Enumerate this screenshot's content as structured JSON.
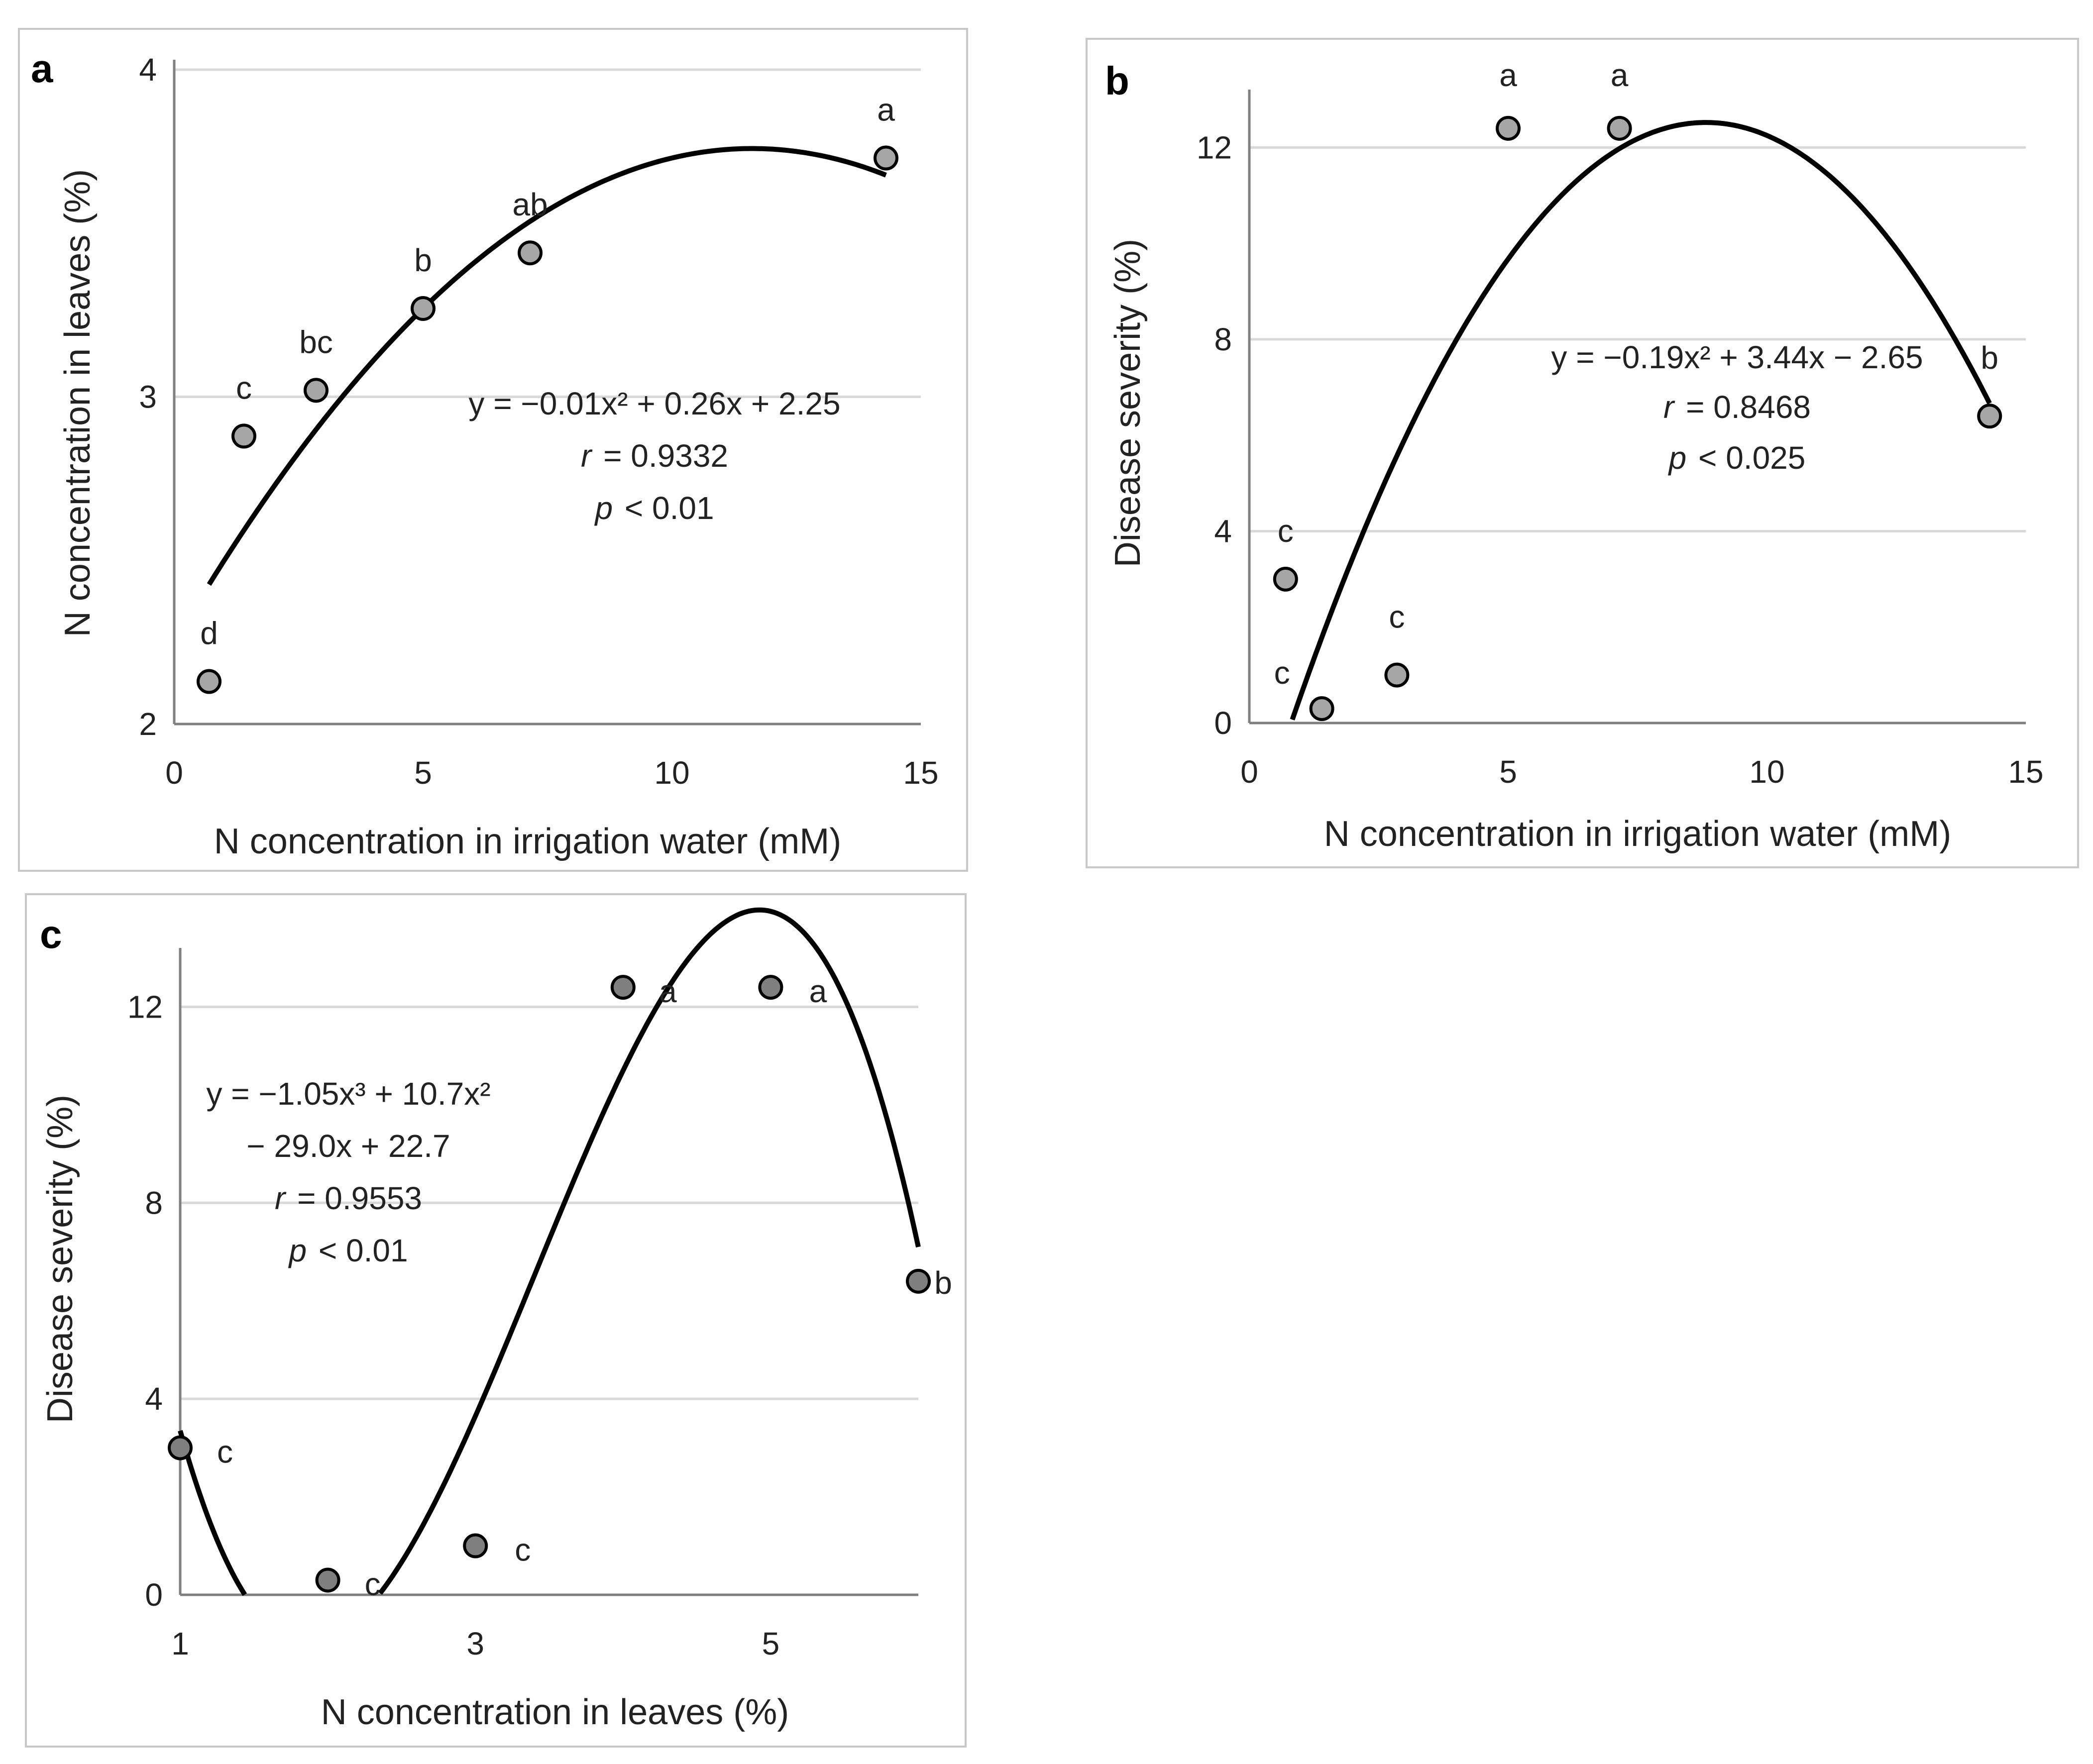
{
  "colors": {
    "marker_fill_ab": "#a6a6a6",
    "marker_fill_c": "#7f7f7f",
    "fit_line": "#000000",
    "gridline": "#d9d9d9",
    "frame": "#c8c8c8"
  },
  "chart_data": [
    {
      "panel": "a",
      "type": "scatter",
      "xlabel": "N concentration in irrigation water (mM)",
      "ylabel": "N concentration in leaves (%)",
      "xlim": [
        0,
        15
      ],
      "ylim": [
        2,
        4
      ],
      "xticks": [
        0,
        5,
        10,
        15
      ],
      "yticks": [
        2,
        3,
        4
      ],
      "grid": "horizontal",
      "x": [
        0.7,
        1.4,
        2.85,
        5,
        7.15,
        14.3
      ],
      "y": [
        2.13,
        2.88,
        3.02,
        3.27,
        3.44,
        3.73
      ],
      "annotations": [
        "d",
        "c",
        "bc",
        "b",
        "ab",
        "a"
      ],
      "fit": {
        "type": "polynomial",
        "coef": [
          2.25,
          0.26,
          -0.0112
        ],
        "domain": [
          0.7,
          14.3
        ]
      },
      "equation_lines": [
        "y = −0.01x² + 0.26x + 2.25",
        "r = 0.9332",
        "p < 0.01"
      ]
    },
    {
      "panel": "b",
      "type": "scatter",
      "xlabel": "N concentration in irrigation water (mM)",
      "ylabel": "Disease severity (%)",
      "xlim": [
        0,
        15
      ],
      "ylim": [
        0,
        13
      ],
      "xticks": [
        0,
        5,
        10,
        15
      ],
      "yticks": [
        0,
        4,
        8,
        12
      ],
      "grid": "horizontal",
      "x": [
        0.7,
        1.4,
        2.85,
        5,
        7.15,
        14.3
      ],
      "y": [
        3.0,
        0.3,
        1.0,
        12.4,
        12.4,
        6.4
      ],
      "annotations": [
        "c",
        "c",
        "c",
        "a",
        "a",
        "b"
      ],
      "fit": {
        "type": "polynomial",
        "coef": [
          -2.65,
          3.44,
          -0.195
        ],
        "domain": [
          0.83,
          14.3
        ]
      },
      "equation_lines": [
        "y = −0.19x² + 3.44x − 2.65",
        "r = 0.8468",
        "p < 0.025"
      ]
    },
    {
      "panel": "c",
      "type": "scatter",
      "xlabel": "N concentration in leaves (%)",
      "ylabel": "Disease severity (%)",
      "xlim": [
        1,
        6
      ],
      "ylim": [
        0,
        13
      ],
      "xticks": [
        1,
        3,
        5
      ],
      "yticks": [
        0,
        4,
        8,
        12
      ],
      "grid": "horizontal",
      "x": [
        1.0,
        2.0,
        3.0,
        4.0,
        5.0,
        6.0
      ],
      "y": [
        3.0,
        0.3,
        1.0,
        12.4,
        12.4,
        6.4
      ],
      "annotations": [
        "c",
        "c",
        "c",
        "a",
        "a",
        "b"
      ],
      "fit": {
        "type": "polynomial",
        "coef": [
          22.7,
          -29.0,
          10.7,
          -1.05
        ],
        "domain": [
          1.0,
          6.0
        ]
      },
      "equation_lines": [
        "y = −1.05x³ + 10.7x²",
        "− 29.0x + 22.7",
        "r = 0.9553",
        "p < 0.01"
      ]
    }
  ]
}
